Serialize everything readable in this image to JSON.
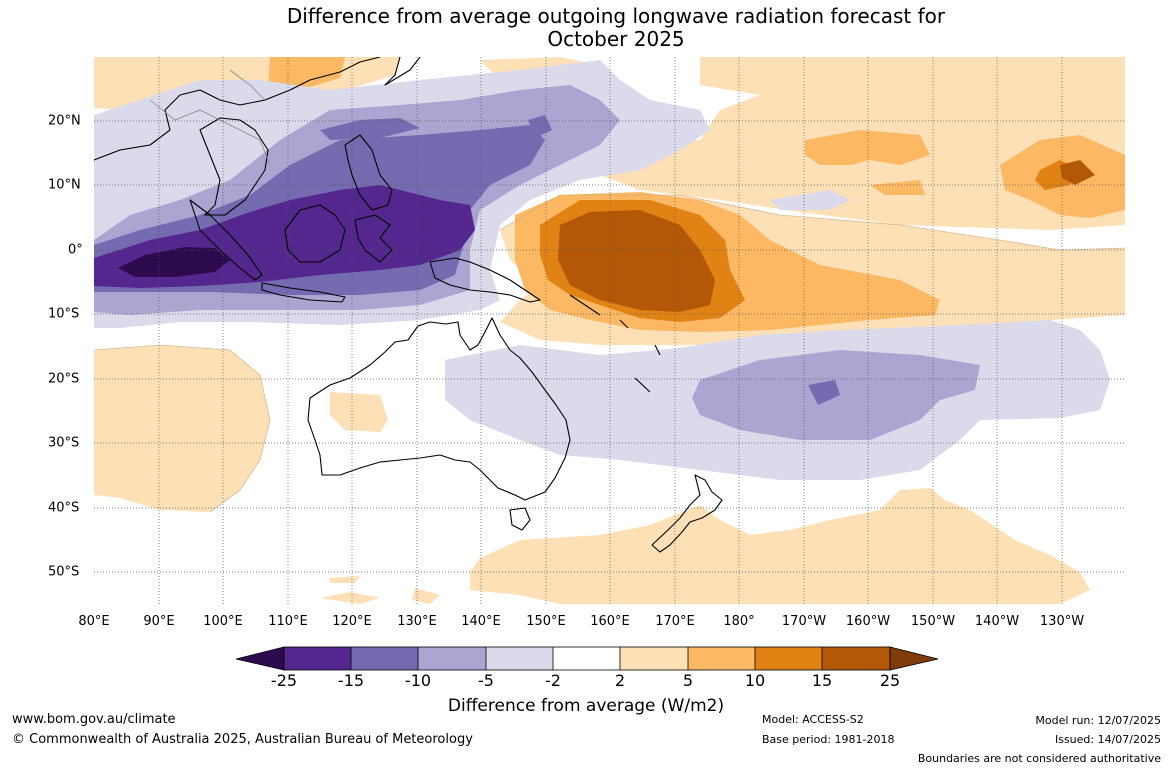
{
  "title_line1": "Difference from average outgoing longwave radiation forecast for",
  "title_line2": "October 2025",
  "lon_labels": [
    "80°E",
    "90°E",
    "100°E",
    "110°E",
    "120°E",
    "130°E",
    "140°E",
    "150°E",
    "160°E",
    "170°E",
    "180°",
    "170°W",
    "160°W",
    "150°W",
    "140°W",
    "130°W"
  ],
  "lat_labels": [
    "20°N",
    "10°N",
    "0°",
    "10°S",
    "20°S",
    "30°S",
    "40°S",
    "50°S"
  ],
  "colorbar": {
    "label": "Difference from average (W/m2)",
    "ticks": [
      "-25",
      "-15",
      "-10",
      "-5",
      "-2",
      "2",
      "5",
      "10",
      "15",
      "25"
    ],
    "colors": {
      "lt_-25": "#2d0a4e",
      "n25_15": "#54278f",
      "n15_10": "#756bb1",
      "n10_5": "#aba5d2",
      "n5_2": "#dadaeb",
      "n2_2": "#ffffff",
      "p2_5": "#fee0b6",
      "p5_10": "#fdb863",
      "p10_15": "#e08214",
      "p15_25": "#b35806",
      "gt_25": "#7f3b08"
    }
  },
  "footer": {
    "url": "www.bom.gov.au/climate",
    "copyright": "© Commonwealth of Australia 2025, Australian Bureau of Meteorology",
    "model": "Model: ACCESS-S2",
    "base_period": "Base period: 1981-2018",
    "model_run": "Model run: 12/07/2025",
    "issued": "Issued: 14/07/2025",
    "disclaimer": "Boundaries are not considered authoritative"
  }
}
